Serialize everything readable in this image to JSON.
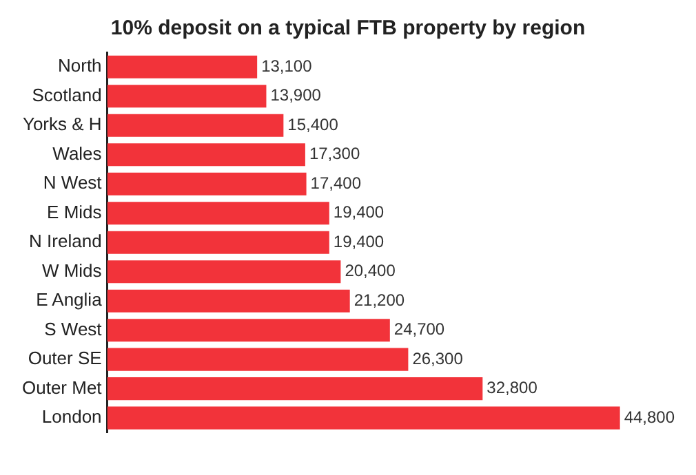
{
  "chart_data": {
    "type": "bar",
    "orientation": "horizontal",
    "title": "10% deposit on a typical FTB property by region",
    "categories": [
      "North",
      "Scotland",
      "Yorks & H",
      "Wales",
      "N West",
      "E Mids",
      "N Ireland",
      "W Mids",
      "E Anglia",
      "S West",
      "Outer SE",
      "Outer Met",
      "London"
    ],
    "values": [
      13100,
      13900,
      15400,
      17300,
      17400,
      19400,
      19400,
      20400,
      21200,
      24700,
      26300,
      32800,
      44800
    ],
    "value_labels": [
      "13,100",
      "13,900",
      "15,400",
      "17,300",
      "17,400",
      "19,400",
      "19,400",
      "20,400",
      "21,200",
      "24,700",
      "26,300",
      "32,800",
      "44,800"
    ],
    "color": "#f2333a",
    "tick_labels": "y",
    "legend": false
  }
}
